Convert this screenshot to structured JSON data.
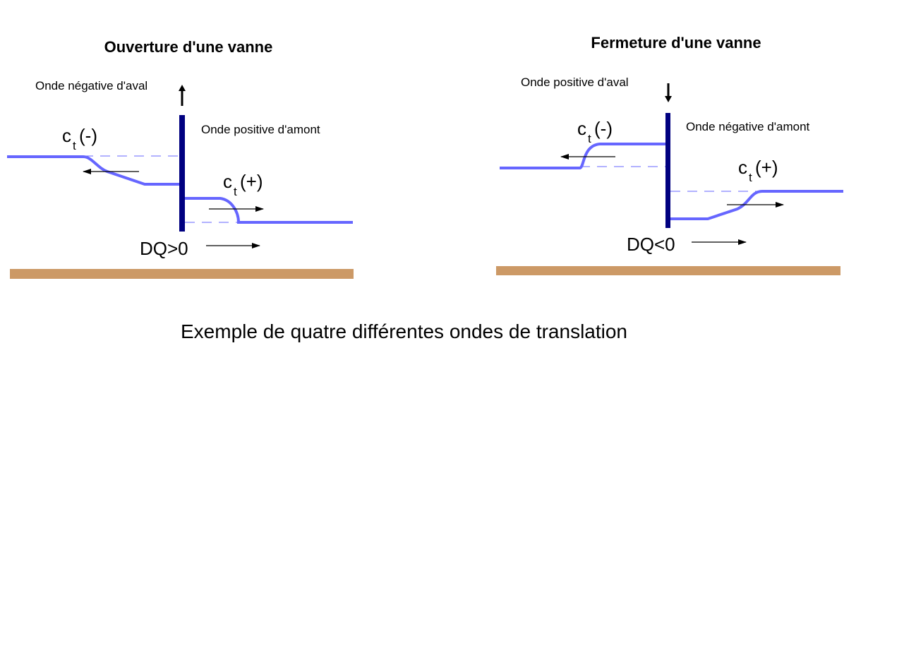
{
  "panels": [
    {
      "title": "Ouverture d'une vanne",
      "downstream_label": "Onde négative d'aval",
      "upstream_label": "Onde positive d'amont",
      "celerity_left": {
        "symbol": "c",
        "subscript": "t",
        "sign": "(-)"
      },
      "celerity_right": {
        "symbol": "c",
        "subscript": "t",
        "sign": "(+)"
      },
      "flow_label": "DQ>0"
    },
    {
      "title": "Fermeture d'une vanne",
      "downstream_label": "Onde positive d'aval",
      "upstream_label": "Onde négative d'amont",
      "celerity_left": {
        "symbol": "c",
        "subscript": "t",
        "sign": "(-)"
      },
      "celerity_right": {
        "symbol": "c",
        "subscript": "t",
        "sign": "(+)"
      },
      "flow_label": "DQ<0"
    }
  ],
  "caption": "Exemple de quatre différentes ondes de translation"
}
